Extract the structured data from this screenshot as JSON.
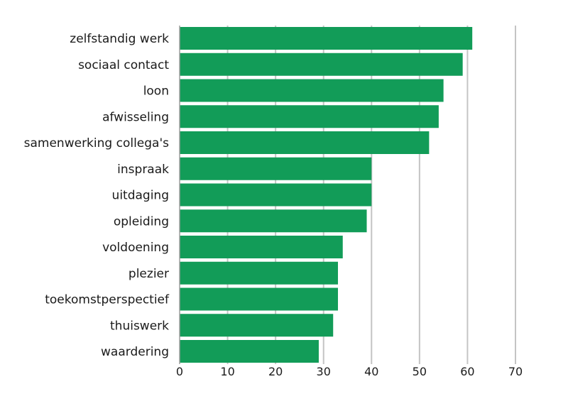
{
  "chart_data": {
    "type": "bar",
    "orientation": "horizontal",
    "title": "",
    "xlabel": "",
    "ylabel": "",
    "categories": [
      "zelfstandig werk",
      "sociaal contact",
      "loon",
      "afwisseling",
      "samenwerking collega's",
      "inspraak",
      "uitdaging",
      "opleiding",
      "voldoening",
      "plezier",
      "toekomstperspectief",
      "thuiswerk",
      "waardering"
    ],
    "values": [
      61,
      59,
      55,
      54,
      52,
      40,
      40,
      39,
      34,
      33,
      33,
      32,
      29
    ],
    "xlim": [
      0,
      70
    ],
    "xticks": [
      "0",
      "10",
      "20",
      "30",
      "40",
      "50",
      "60",
      "70"
    ],
    "grid": "vertical",
    "bar_color": "#129c58",
    "grid_color": "#c4c4c4",
    "legend": "none"
  }
}
